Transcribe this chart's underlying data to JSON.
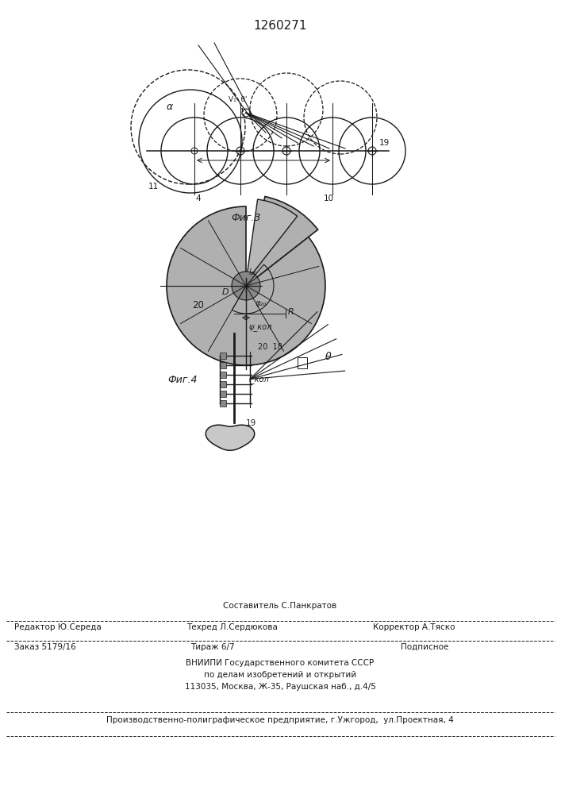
{
  "bg": "#ffffff",
  "lc": "#1a1a1a",
  "title": "1260271",
  "fig3_label": "Фиг.3",
  "fig4_label": "Фиг.4",
  "sostavitel": "Составитель С.Панкратов",
  "redaktor": "Редактор Ю.Середа",
  "tehred": "Техред Л.Сердюкова",
  "korrektor": "Корректор А.Тяско",
  "zakaz": "Заказ 5179/16",
  "tirazh": "Тираж 6/7",
  "podpisnoe": "Подписное",
  "vniipи": "ВНИИПИ Государственного комитета СССР",
  "podel": "по делам изобретений и открытий",
  "address": "113035, Москва, Ж-35, Раушская наб., д.4/5",
  "predpr": "Производственно-полиграфическое предприятие, г.Ужгород,  ул.Проектная, 4"
}
